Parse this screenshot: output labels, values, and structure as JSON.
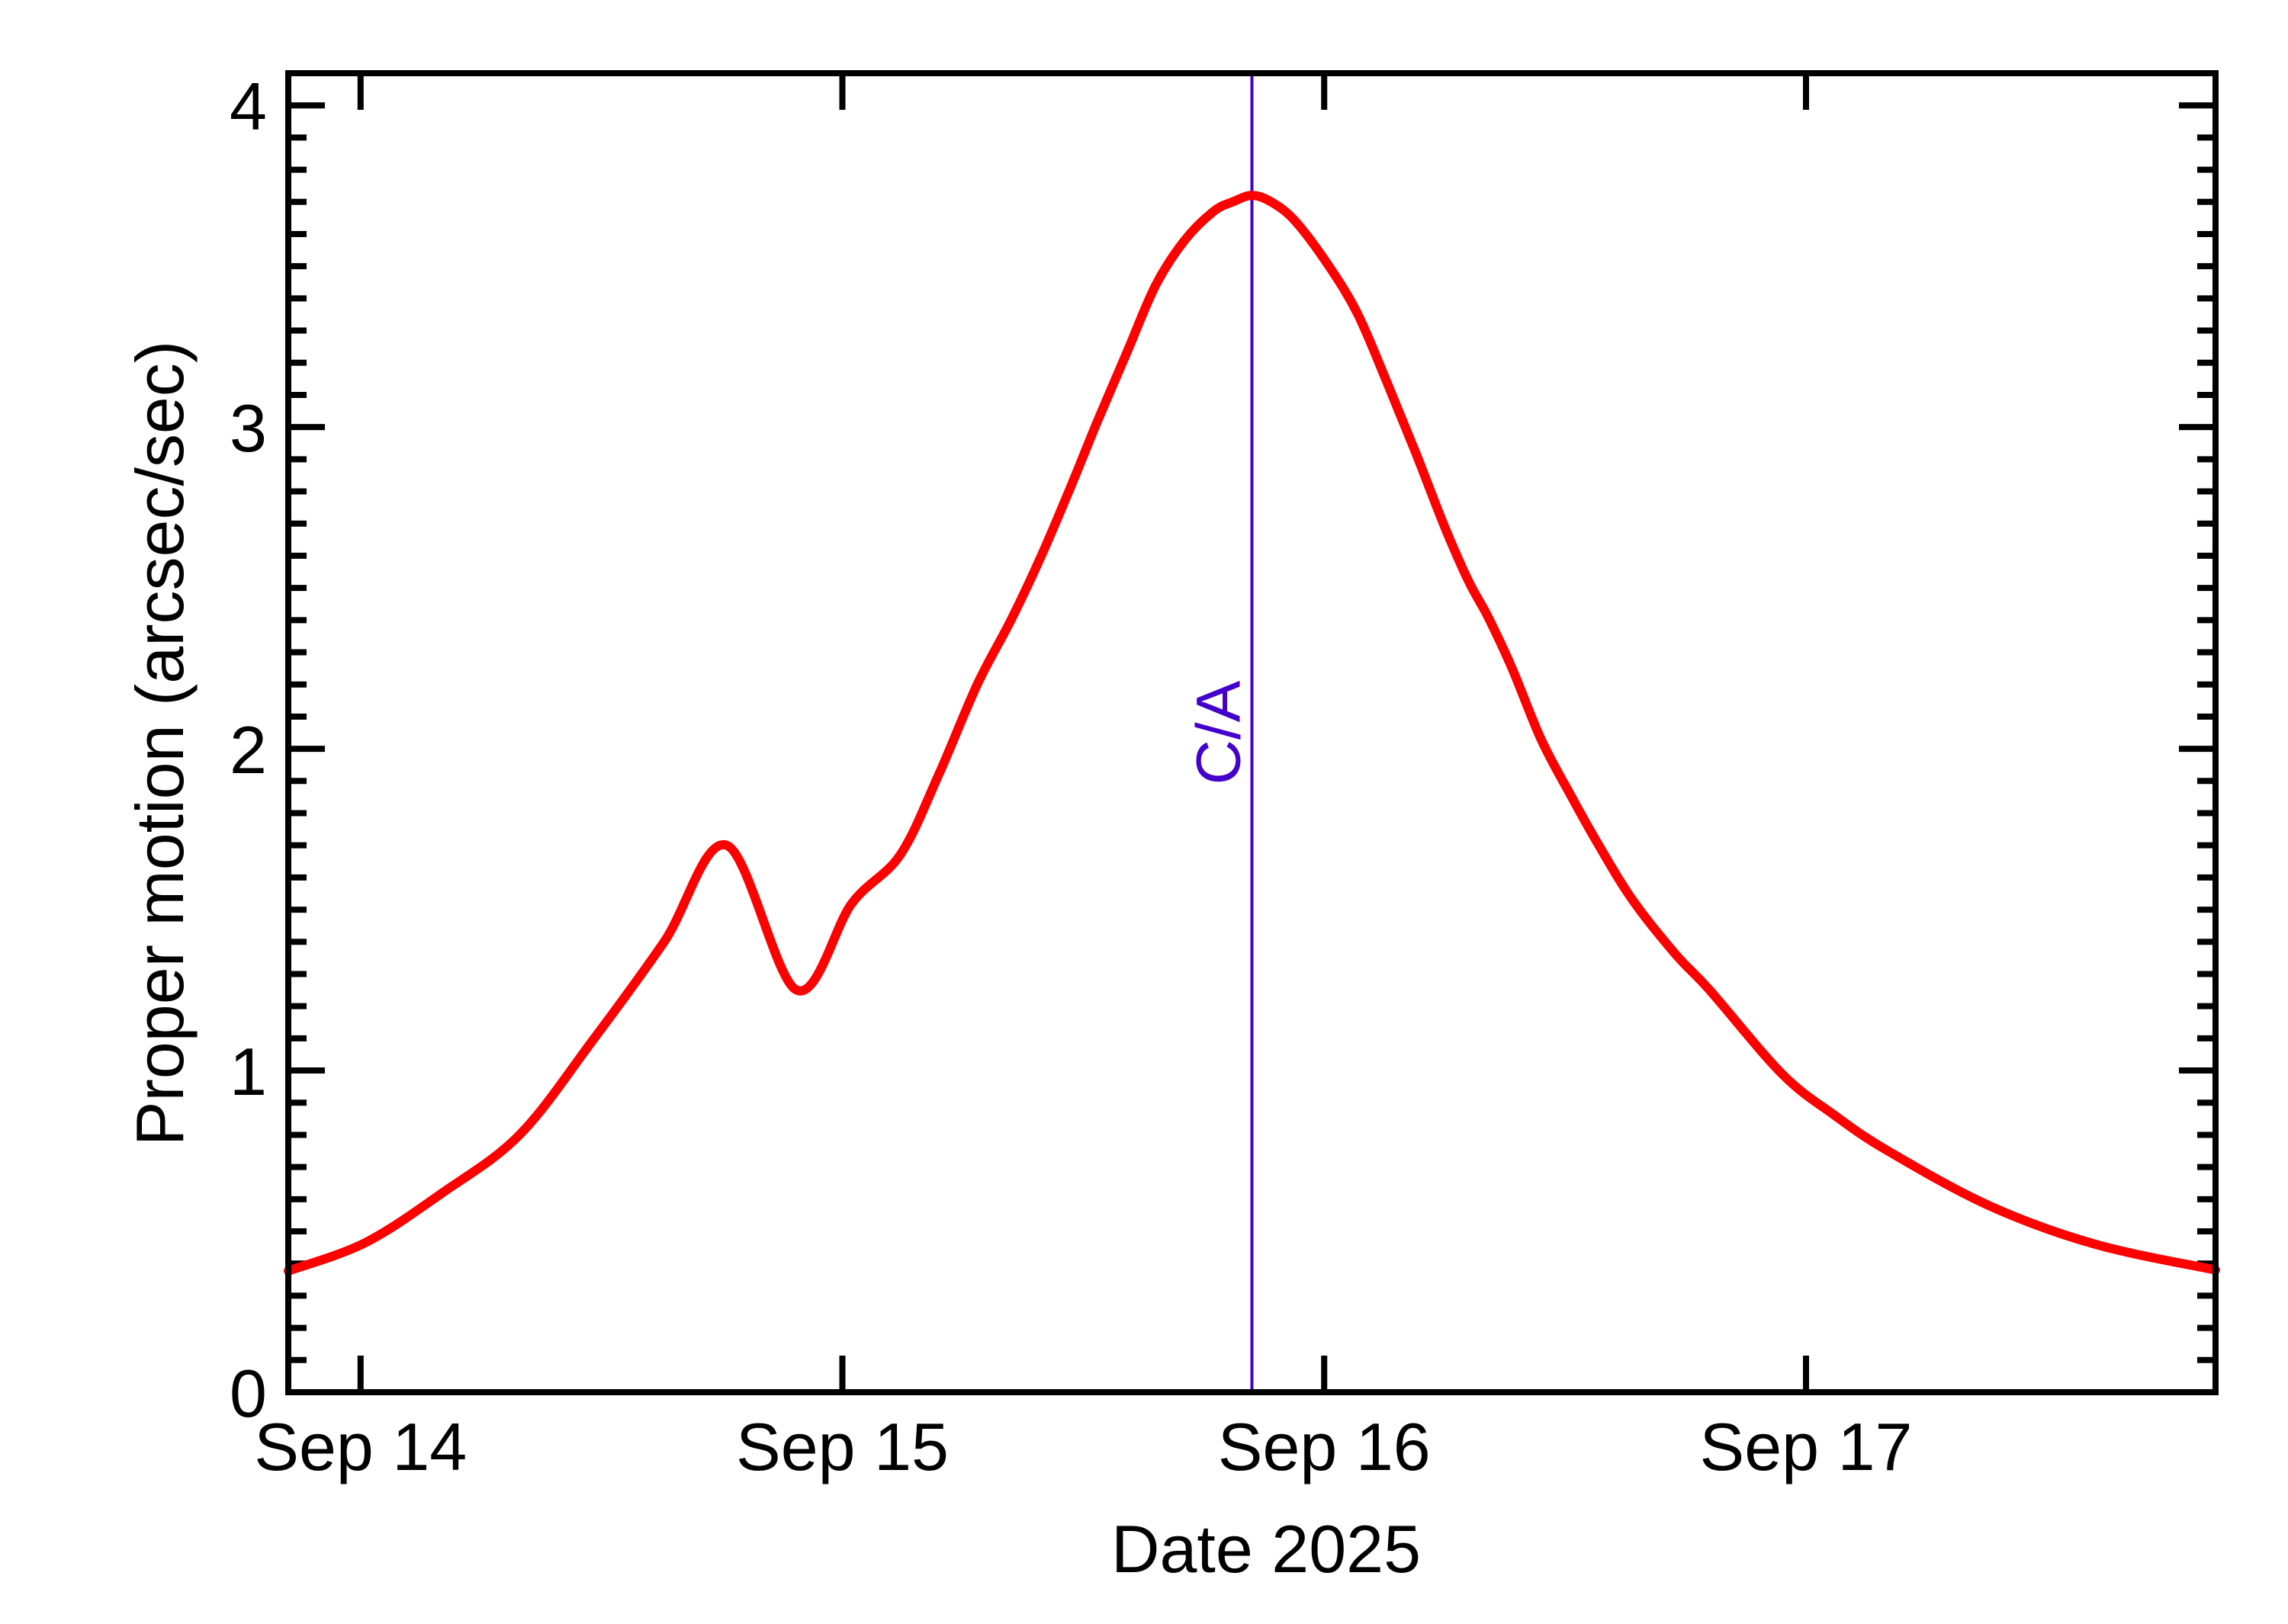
{
  "chart_data": {
    "type": "line",
    "title": "",
    "xlabel": "Date 2025",
    "ylabel": "Proper motion (arcsec/sec)",
    "x_unit": "days since Sep 14, 2025 00:00",
    "xlim": [
      -0.15,
      3.85
    ],
    "ylim": [
      0,
      4.1
    ],
    "x_ticks": [
      {
        "value": 0,
        "label": "Sep 14"
      },
      {
        "value": 1,
        "label": "Sep 15"
      },
      {
        "value": 2,
        "label": "Sep 16"
      },
      {
        "value": 3,
        "label": "Sep 17"
      }
    ],
    "y_ticks": [
      {
        "value": 0,
        "label": "0"
      },
      {
        "value": 1,
        "label": "1"
      },
      {
        "value": 2,
        "label": "2"
      },
      {
        "value": 3,
        "label": "3"
      },
      {
        "value": 4,
        "label": "4"
      }
    ],
    "y_minor_step": 0.1,
    "grid": false,
    "legend": null,
    "series": [
      {
        "name": "Proper motion",
        "color": "#ff0000",
        "x": [
          -0.15,
          0.01,
          0.17,
          0.33,
          0.48,
          0.63,
          0.76,
          0.905,
          1.02,
          1.12,
          1.2,
          1.28,
          1.35,
          1.41,
          1.47,
          1.53,
          1.59,
          1.65,
          1.71,
          1.77,
          1.81,
          1.85,
          1.89,
          1.94,
          2.01,
          2.07,
          2.13,
          2.19,
          2.25,
          2.3,
          2.34,
          2.39,
          2.45,
          2.51,
          2.57,
          2.64,
          2.73,
          2.8,
          2.95,
          3.06,
          3.17,
          3.38,
          3.6,
          3.85
        ],
        "y": [
          0.377,
          0.465,
          0.62,
          0.8,
          1.09,
          1.4,
          1.7,
          1.25,
          1.52,
          1.67,
          1.92,
          2.2,
          2.4,
          2.59,
          2.8,
          3.02,
          3.23,
          3.44,
          3.58,
          3.67,
          3.7,
          3.72,
          3.7,
          3.64,
          3.5,
          3.35,
          3.14,
          2.92,
          2.69,
          2.52,
          2.41,
          2.25,
          2.03,
          1.86,
          1.7,
          1.53,
          1.36,
          1.25,
          0.99,
          0.86,
          0.75,
          0.58,
          0.46,
          0.38
        ]
      }
    ],
    "annotations": [
      {
        "type": "vline",
        "x": 1.85,
        "label": "C/A",
        "color": "#4400cc",
        "label_rotation": -90,
        "label_y": 2.05
      }
    ]
  },
  "labels": {
    "xlabel": "Date 2025",
    "ylabel": "Proper motion (arcsec/sec)",
    "ca_label": "C/A"
  }
}
